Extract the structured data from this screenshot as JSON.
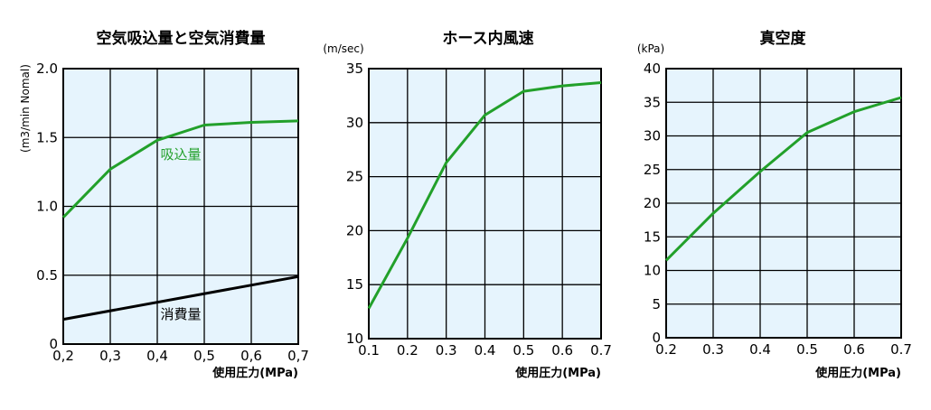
{
  "chart_data": [
    {
      "type": "line",
      "title": "空気吸込量と空気消費量",
      "xlabel": "使用圧力(MPa)",
      "ylabel": "(m3/min Nomal)",
      "x_tick_labels": [
        "0,2",
        "0,3",
        "0,4",
        "0,5",
        "0,6",
        "0,7"
      ],
      "y_tick_labels": [
        "0",
        "0.5",
        "1.0",
        "1.5",
        "2.0"
      ],
      "xlim": [
        0.2,
        0.7
      ],
      "ylim": [
        0,
        2.0
      ],
      "grid": true,
      "series": [
        {
          "name": "吸込量",
          "color": "#22a02a",
          "x": [
            0.2,
            0.3,
            0.4,
            0.5,
            0.6,
            0.7
          ],
          "y": [
            0.92,
            1.27,
            1.48,
            1.59,
            1.61,
            1.62
          ]
        },
        {
          "name": "消費量",
          "color": "#000000",
          "x": [
            0.2,
            0.7
          ],
          "y": [
            0.18,
            0.49
          ]
        }
      ]
    },
    {
      "type": "line",
      "title": "ホース内風速",
      "xlabel": "使用圧力(MPa)",
      "ylabel": "(m/sec)",
      "x_tick_labels": [
        "0.1",
        "0.2",
        "0.3",
        "0.4",
        "0.5",
        "0.6",
        "0.7"
      ],
      "y_tick_labels": [
        "10",
        "15",
        "20",
        "25",
        "30",
        "35"
      ],
      "xlim": [
        0.1,
        0.7
      ],
      "ylim": [
        10,
        35
      ],
      "grid": true,
      "series": [
        {
          "color": "#22a02a",
          "x": [
            0.1,
            0.2,
            0.3,
            0.4,
            0.5,
            0.6,
            0.7
          ],
          "y": [
            12.8,
            19.3,
            26.3,
            30.7,
            32.9,
            33.4,
            33.7
          ]
        }
      ]
    },
    {
      "type": "line",
      "title": "真空度",
      "xlabel": "使用圧力(MPa)",
      "ylabel": "(kPa)",
      "x_tick_labels": [
        "0.2",
        "0.3",
        "0.4",
        "0.5",
        "0.6",
        "0.7"
      ],
      "y_tick_labels": [
        "0",
        "5",
        "10",
        "15",
        "20",
        "25",
        "30",
        "35",
        "40"
      ],
      "xlim": [
        0.2,
        0.7
      ],
      "ylim": [
        0,
        40
      ],
      "grid": true,
      "series": [
        {
          "color": "#22a02a",
          "x": [
            0.2,
            0.3,
            0.4,
            0.5,
            0.6,
            0.7
          ],
          "y": [
            11.5,
            18.5,
            24.7,
            30.5,
            33.6,
            35.7
          ]
        }
      ]
    }
  ]
}
